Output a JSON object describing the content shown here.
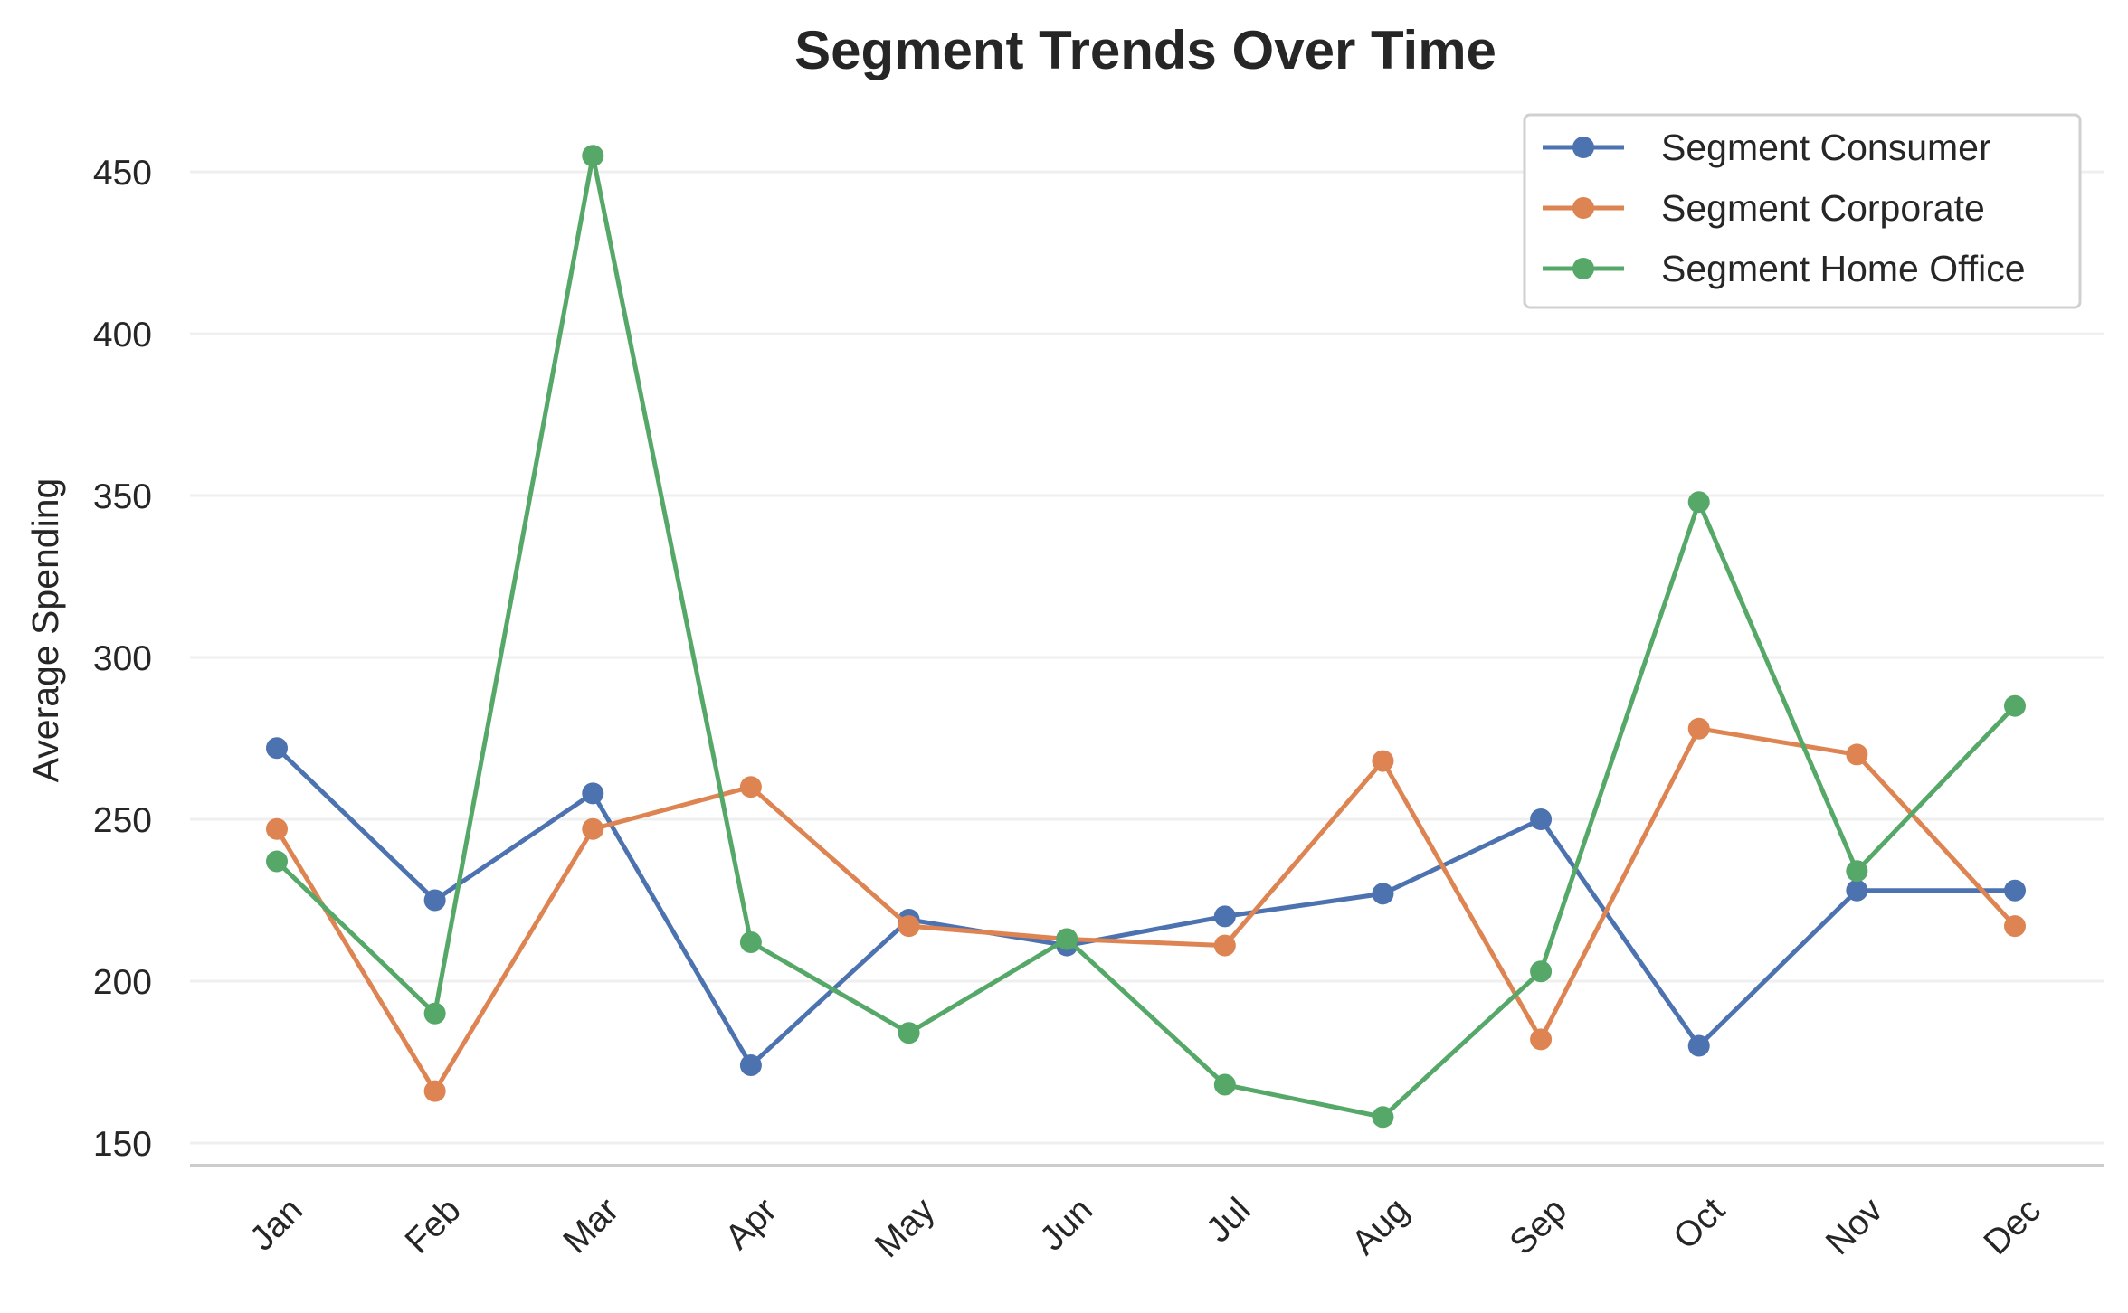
{
  "chart_data": {
    "type": "line",
    "title": "Segment Trends Over Time",
    "xlabel": "",
    "ylabel": "Average Spending",
    "categories": [
      "Jan",
      "Feb",
      "Mar",
      "Apr",
      "May",
      "Jun",
      "Jul",
      "Aug",
      "Sep",
      "Oct",
      "Nov",
      "Dec"
    ],
    "yticks": [
      150,
      200,
      250,
      300,
      350,
      400,
      450
    ],
    "ylim": [
      143,
      464
    ],
    "grid": "horizontal",
    "legend_position": "top-right",
    "series": [
      {
        "name": "Segment Consumer",
        "color": "#4c72b0",
        "values": [
          272,
          225,
          258,
          174,
          219,
          211,
          220,
          227,
          250,
          180,
          228,
          228
        ]
      },
      {
        "name": "Segment Corporate",
        "color": "#dd8452",
        "values": [
          247,
          166,
          247,
          260,
          217,
          213,
          211,
          268,
          182,
          278,
          270,
          217
        ]
      },
      {
        "name": "Segment Home Office",
        "color": "#55a868",
        "values": [
          237,
          190,
          455,
          212,
          184,
          213,
          168,
          158,
          203,
          348,
          234,
          285
        ]
      }
    ]
  }
}
